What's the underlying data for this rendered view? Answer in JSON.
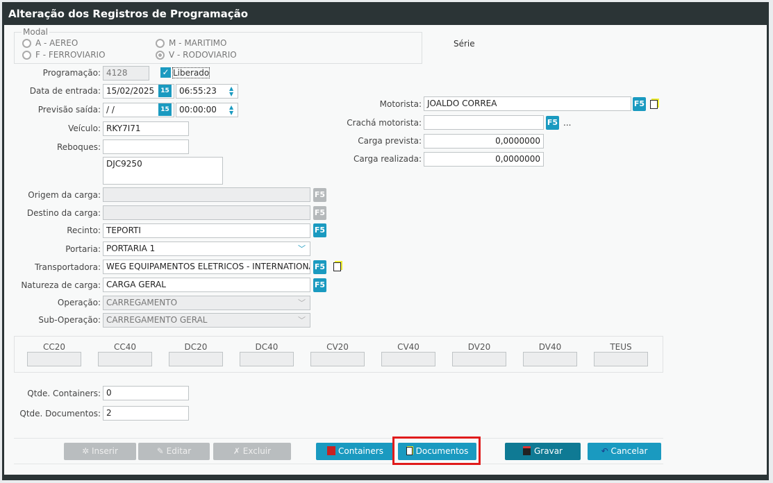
{
  "title": "Alteração dos Registros de Programação",
  "modal": {
    "legend": "Modal",
    "options": [
      "A - AEREO",
      "F - FERROVIARIO",
      "M - MARITIMO",
      "V - RODOVIARIO"
    ],
    "selected": "V - RODOVIARIO"
  },
  "serie_label": "Série",
  "fields": {
    "programacao": {
      "label": "Programação:",
      "value": "4128"
    },
    "liberado": {
      "label": "Liberado",
      "checked": true
    },
    "data_entrada": {
      "label": "Data de entrada:",
      "date": "15/02/2025",
      "time": "06:55:23"
    },
    "previsao_saida": {
      "label": "Previsão saída:",
      "date": " / /",
      "time": "00:00:00"
    },
    "veiculo": {
      "label": "Veículo:",
      "value": "RKY7I71"
    },
    "reboques": {
      "label": "Reboques:",
      "value": "",
      "list": "DJC9250"
    },
    "origem": {
      "label": "Origem da carga:",
      "value": ""
    },
    "destino": {
      "label": "Destino da carga:",
      "value": ""
    },
    "recinto": {
      "label": "Recinto:",
      "value": "TEPORTI"
    },
    "portaria": {
      "label": "Portaria:",
      "value": "PORTARIA 1"
    },
    "transportadora": {
      "label": "Transportadora:",
      "value": "WEG EQUIPAMENTOS ELETRICOS - INTERNATIONAL"
    },
    "natureza": {
      "label": "Natureza de carga:",
      "value": "CARGA GERAL"
    },
    "operacao": {
      "label": "Operação:",
      "value": "CARREGAMENTO"
    },
    "sub_operacao": {
      "label": "Sub-Operação:",
      "value": "CARREGAMENTO GERAL"
    },
    "motorista": {
      "label": "Motorista:",
      "value": "JOALDO CORREA"
    },
    "cracha": {
      "label": "Crachá motorista:",
      "value": "",
      "more": "..."
    },
    "carga_prevista": {
      "label": "Carga prevista:",
      "value": "0,0000000"
    },
    "carga_realizada": {
      "label": "Carga realizada:",
      "value": "0,0000000"
    },
    "qtde_containers": {
      "label": "Qtde. Containers:",
      "value": "0"
    },
    "qtde_documentos": {
      "label": "Qtde. Documentos:",
      "value": "2"
    }
  },
  "f5": "F5",
  "calendar": "15",
  "container_types": [
    "CC20",
    "CC40",
    "DC20",
    "DC40",
    "CV20",
    "CV40",
    "DV20",
    "DV40",
    "TEUS"
  ],
  "buttons": {
    "inserir": "Inserir",
    "editar": "Editar",
    "excluir": "Excluir",
    "containers": "Containers",
    "documentos": "Documentos",
    "gravar": "Gravar",
    "cancelar": "Cancelar"
  },
  "colors": {
    "accent": "#1a9ac0",
    "highlight": "#e01b1b",
    "titlebar": "#2b3436"
  }
}
